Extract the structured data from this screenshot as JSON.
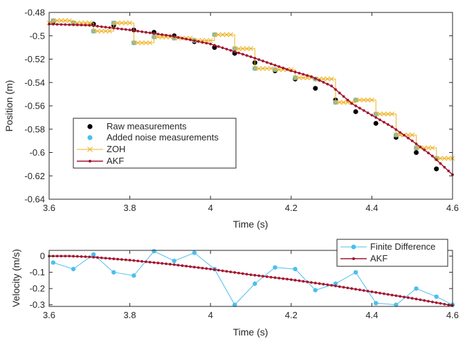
{
  "colors": {
    "raw": "#000000",
    "noise": "#4dbeee",
    "zoh": "#edb120",
    "akf": "#a2142f",
    "axis": "#262626"
  },
  "chart_data": [
    {
      "type": "line",
      "xlabel": "Time (s)",
      "ylabel": "Position (m)",
      "xlim": [
        3.6,
        4.6
      ],
      "ylim": [
        -0.64,
        -0.48
      ],
      "xticks": [
        "3.6",
        "3.8",
        "4",
        "4.2",
        "4.4",
        "4.6"
      ],
      "yticks": [
        "-0.48",
        "-0.5",
        "-0.52",
        "-0.54",
        "-0.56",
        "-0.58",
        "-0.6",
        "-0.62",
        "-0.64"
      ],
      "legend_position": "lower-left",
      "series": [
        {
          "name": "Raw measurements",
          "style": "markers",
          "x": [
            3.61,
            3.66,
            3.71,
            3.76,
            3.81,
            3.86,
            3.91,
            3.96,
            4.01,
            4.06,
            4.11,
            4.16,
            4.21,
            4.26,
            4.31,
            4.36,
            4.41,
            4.46,
            4.51,
            4.56
          ],
          "y": [
            -0.488,
            -0.489,
            -0.49,
            -0.491,
            -0.495,
            -0.497,
            -0.5,
            -0.505,
            -0.51,
            -0.515,
            -0.523,
            -0.53,
            -0.537,
            -0.545,
            -0.555,
            -0.565,
            -0.575,
            -0.587,
            -0.6,
            -0.614
          ]
        },
        {
          "name": "Added noise measurements",
          "style": "markers",
          "x": [
            3.61,
            3.66,
            3.71,
            3.76,
            3.81,
            3.86,
            3.91,
            3.96,
            4.01,
            4.06,
            4.11,
            4.16,
            4.21,
            4.26,
            4.31,
            4.36,
            4.41,
            4.46,
            4.51,
            4.56
          ],
          "y": [
            -0.487,
            -0.489,
            -0.496,
            -0.489,
            -0.506,
            -0.501,
            -0.502,
            -0.504,
            -0.499,
            -0.511,
            -0.528,
            -0.529,
            -0.536,
            -0.537,
            -0.557,
            -0.555,
            -0.567,
            -0.585,
            -0.596,
            -0.605
          ]
        },
        {
          "name": "ZOH",
          "style": "step",
          "x": [
            3.6,
            3.61,
            3.66,
            3.71,
            3.76,
            3.81,
            3.86,
            3.91,
            3.96,
            4.01,
            4.06,
            4.11,
            4.16,
            4.21,
            4.26,
            4.31,
            4.36,
            4.41,
            4.46,
            4.51,
            4.56,
            4.6
          ],
          "y": [
            -0.489,
            -0.487,
            -0.489,
            -0.496,
            -0.489,
            -0.506,
            -0.501,
            -0.502,
            -0.504,
            -0.499,
            -0.511,
            -0.528,
            -0.529,
            -0.536,
            -0.537,
            -0.557,
            -0.555,
            -0.567,
            -0.585,
            -0.596,
            -0.605,
            -0.605
          ]
        },
        {
          "name": "AKF",
          "style": "line-dots",
          "x": [
            3.6,
            3.7,
            3.8,
            3.9,
            4.0,
            4.1,
            4.15,
            4.2,
            4.25,
            4.3,
            4.35,
            4.4,
            4.45,
            4.5,
            4.55,
            4.6
          ],
          "y": [
            -0.49,
            -0.491,
            -0.495,
            -0.5,
            -0.507,
            -0.518,
            -0.524,
            -0.53,
            -0.535,
            -0.543,
            -0.558,
            -0.568,
            -0.578,
            -0.59,
            -0.603,
            -0.619
          ]
        }
      ]
    },
    {
      "type": "line",
      "xlabel": "Time (s)",
      "ylabel": "Velocity (m/s)",
      "xlim": [
        3.6,
        4.6
      ],
      "ylim": [
        -0.31,
        0.035
      ],
      "xticks": [
        "3.6",
        "3.8",
        "4",
        "4.2",
        "4.4",
        "4.6"
      ],
      "yticks": [
        "0",
        "-0.1",
        "-0.2",
        "-0.3"
      ],
      "legend_position": "top-right",
      "series": [
        {
          "name": "Finite Difference",
          "style": "line-markers",
          "x": [
            3.61,
            3.66,
            3.71,
            3.76,
            3.81,
            3.86,
            3.91,
            3.96,
            4.01,
            4.06,
            4.11,
            4.16,
            4.21,
            4.26,
            4.31,
            4.36,
            4.41,
            4.46,
            4.51,
            4.56,
            4.6
          ],
          "y": [
            -0.04,
            -0.08,
            0.01,
            -0.1,
            -0.12,
            0.03,
            -0.03,
            0.02,
            -0.08,
            -0.3,
            -0.17,
            -0.07,
            -0.08,
            -0.21,
            -0.17,
            -0.1,
            -0.29,
            -0.3,
            -0.2,
            -0.25,
            -0.3
          ]
        },
        {
          "name": "AKF",
          "style": "line-dots",
          "x": [
            3.6,
            3.65,
            3.7,
            3.8,
            3.9,
            4.0,
            4.1,
            4.2,
            4.3,
            4.4,
            4.5,
            4.6
          ],
          "y": [
            0.0,
            0.0,
            -0.005,
            -0.025,
            -0.05,
            -0.08,
            -0.115,
            -0.145,
            -0.18,
            -0.22,
            -0.26,
            -0.305
          ]
        }
      ]
    }
  ]
}
